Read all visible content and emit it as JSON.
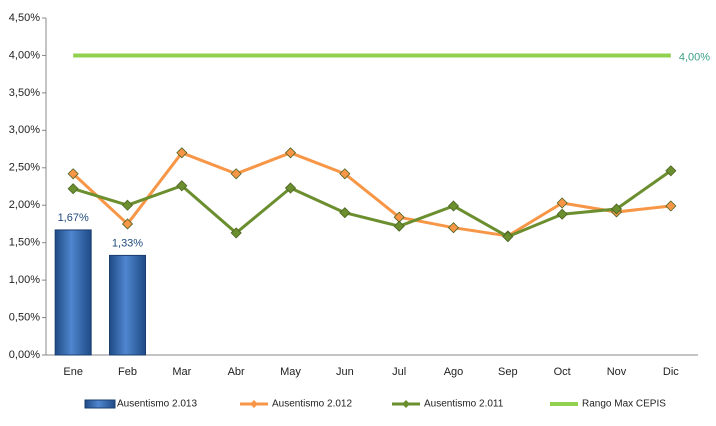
{
  "chart_data": {
    "type": "bar-line",
    "categories": [
      "Ene",
      "Feb",
      "Mar",
      "Abr",
      "May",
      "Jun",
      "Jul",
      "Ago",
      "Sep",
      "Oct",
      "Nov",
      "Dic"
    ],
    "series": [
      {
        "name": "Ausentismo 2.013",
        "type": "bar",
        "color": "#2f5fa5",
        "values": [
          1.67,
          1.33,
          null,
          null,
          null,
          null,
          null,
          null,
          null,
          null,
          null,
          null
        ],
        "value_labels": [
          "1,67%",
          "1,33%",
          null,
          null,
          null,
          null,
          null,
          null,
          null,
          null,
          null,
          null
        ]
      },
      {
        "name": "Ausentismo 2.012",
        "type": "line",
        "color": "#f79646",
        "values": [
          2.42,
          1.75,
          2.7,
          2.42,
          2.7,
          2.42,
          1.84,
          1.7,
          1.59,
          2.03,
          1.91,
          1.99
        ]
      },
      {
        "name": "Ausentismo 2.011",
        "type": "line",
        "color": "#6b8e2f",
        "values": [
          2.22,
          2.0,
          2.26,
          1.63,
          2.23,
          1.9,
          1.72,
          1.99,
          1.58,
          1.88,
          1.95,
          2.46
        ]
      },
      {
        "name": "Rango Max CEPIS",
        "type": "line",
        "color": "#92d050",
        "values": [
          4.0,
          4.0,
          4.0,
          4.0,
          4.0,
          4.0,
          4.0,
          4.0,
          4.0,
          4.0,
          4.0,
          4.0
        ],
        "value_labels": [
          null,
          null,
          null,
          null,
          null,
          null,
          null,
          null,
          null,
          null,
          null,
          "4,00%"
        ]
      }
    ],
    "ylim": [
      0,
      4.5
    ],
    "yticks": [
      {
        "value": 0,
        "label": "0,00%"
      },
      {
        "value": 0.5,
        "label": "0,50%"
      },
      {
        "value": 1,
        "label": "1,00%"
      },
      {
        "value": 1.5,
        "label": "1,50%"
      },
      {
        "value": 2,
        "label": "2,00%"
      },
      {
        "value": 2.5,
        "label": "2,50%"
      },
      {
        "value": 3,
        "label": "3,00%"
      },
      {
        "value": 3.5,
        "label": "3,50%"
      },
      {
        "value": 4,
        "label": "4,00%"
      },
      {
        "value": 4.5,
        "label": "4,50%"
      }
    ],
    "legend": "bottom"
  }
}
